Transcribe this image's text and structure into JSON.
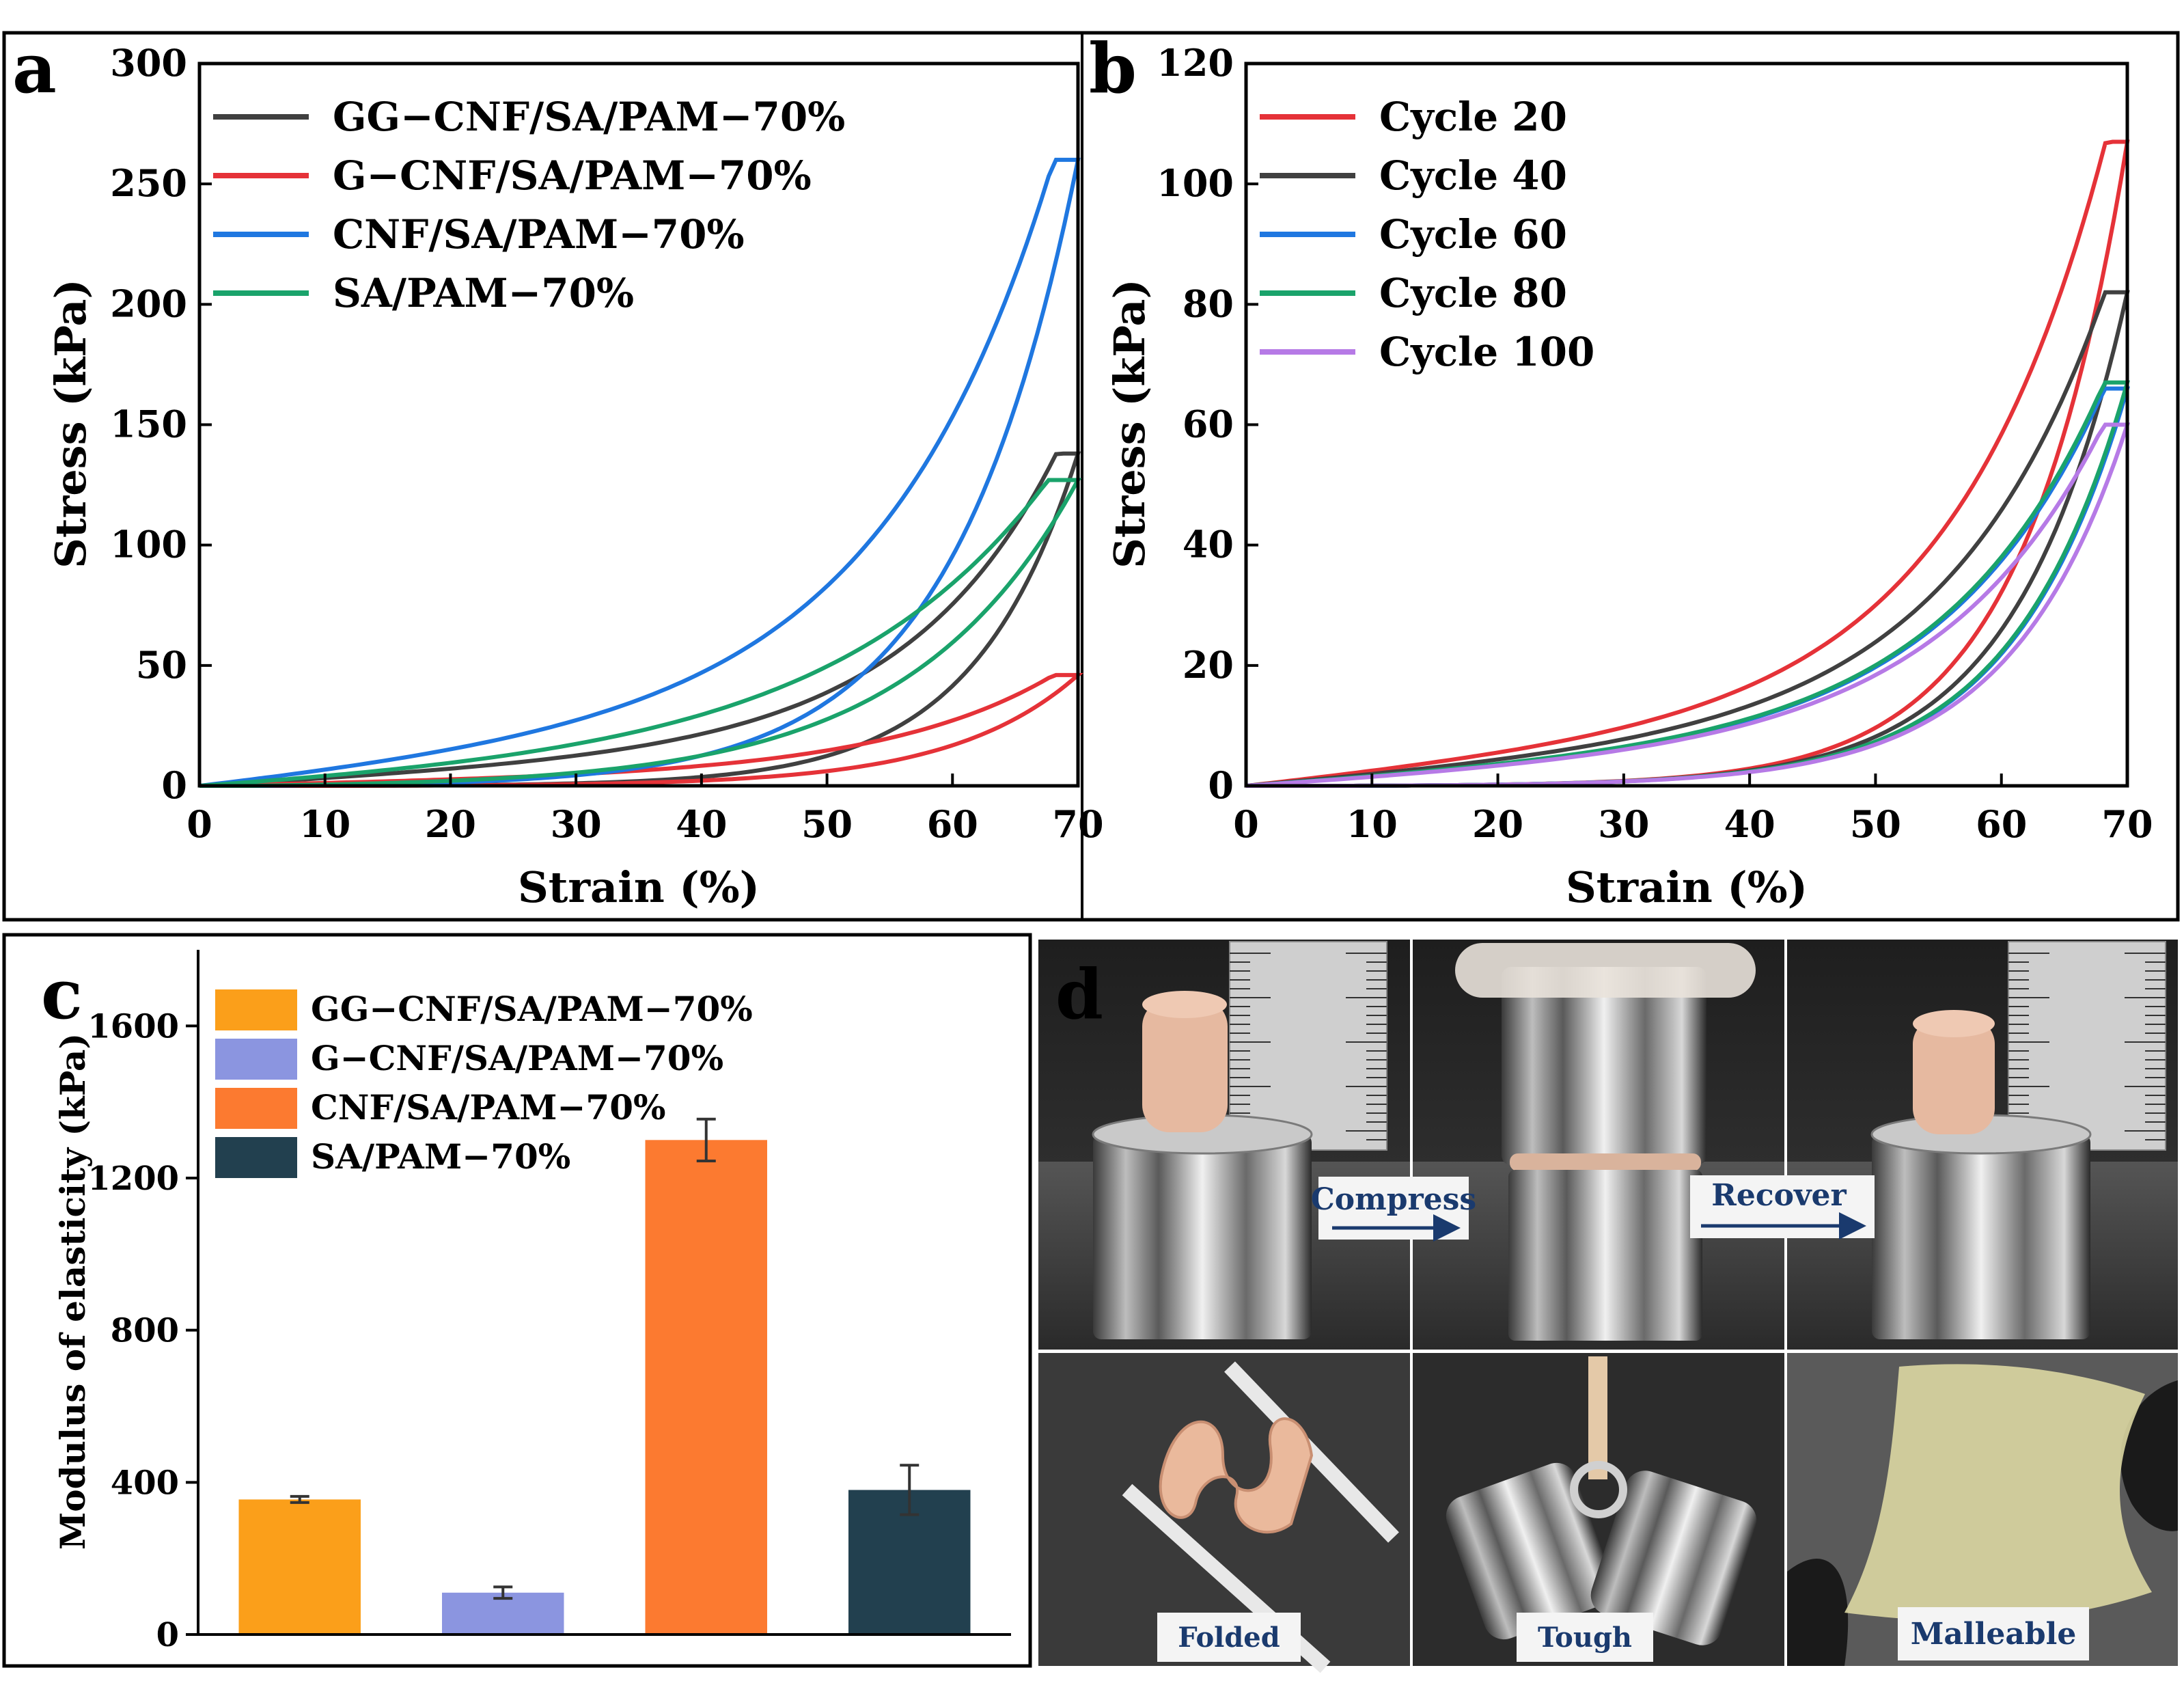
{
  "panel_letters": {
    "a": "a",
    "b": "b",
    "c": "c",
    "d": "d"
  },
  "chart_data": [
    {
      "panel": "a",
      "type": "line",
      "xlabel": "Strain (%)",
      "ylabel": "Stress (kPa)",
      "xlim": [
        0,
        70
      ],
      "ylim": [
        0,
        300
      ],
      "xticks": [
        0,
        10,
        20,
        30,
        40,
        50,
        60,
        70
      ],
      "yticks": [
        0,
        50,
        100,
        150,
        200,
        250,
        300
      ],
      "legend_position": "top-left",
      "series": [
        {
          "name": "GG−CNF/SA/PAM−70%",
          "color": "#404040",
          "peak": 138,
          "load_k": 0.0848,
          "unload_k": 0.12,
          "unload_zero": 10
        },
        {
          "name": "G−CNF/SA/PAM−70%",
          "color": "#e53238",
          "peak": 46,
          "load_k": 0.075,
          "unload_k": 0.1,
          "unload_zero": 12
        },
        {
          "name": "CNF/SA/PAM−70%",
          "color": "#1f77e0",
          "peak": 260,
          "load_k": 0.075,
          "unload_k": 0.1,
          "unload_zero": 5
        },
        {
          "name": "SA/PAM−70%",
          "color": "#1aa36b",
          "peak": 127,
          "load_k": 0.06,
          "unload_k": 0.075,
          "unload_zero": 4
        }
      ]
    },
    {
      "panel": "b",
      "type": "line",
      "xlabel": "Strain (%)",
      "ylabel": "Stress (kPa)",
      "xlim": [
        0,
        70
      ],
      "ylim": [
        0,
        120
      ],
      "xticks": [
        0,
        10,
        20,
        30,
        40,
        50,
        60,
        70
      ],
      "yticks": [
        0,
        20,
        40,
        60,
        80,
        100,
        120
      ],
      "legend_position": "top-left",
      "series": [
        {
          "name": "Cycle 20",
          "color": "#e53238",
          "peak": 107,
          "load_k": 0.085,
          "unload_k": 0.12,
          "unload_zero": 8
        },
        {
          "name": "Cycle 40",
          "color": "#404040",
          "peak": 82,
          "load_k": 0.082,
          "unload_k": 0.115,
          "unload_zero": 8
        },
        {
          "name": "Cycle 60",
          "color": "#1f77e0",
          "peak": 66,
          "load_k": 0.08,
          "unload_k": 0.11,
          "unload_zero": 8
        },
        {
          "name": "Cycle 80",
          "color": "#1aa36b",
          "peak": 67,
          "load_k": 0.08,
          "unload_k": 0.11,
          "unload_zero": 8
        },
        {
          "name": "Cycle 100",
          "color": "#b67ae6",
          "peak": 60,
          "load_k": 0.078,
          "unload_k": 0.108,
          "unload_zero": 8
        }
      ]
    },
    {
      "panel": "c",
      "type": "bar",
      "ylabel": "Modulus of elasticity (kPa)",
      "ylim": [
        0,
        1800
      ],
      "yticks": [
        0,
        400,
        800,
        1200,
        1600
      ],
      "legend_position": "top-left",
      "categories": [
        "GG−CNF/SA/PAM−70%",
        "G−CNF/SA/PAM−70%",
        "CNF/SA/PAM−70%",
        "SA/PAM−70%"
      ],
      "values": [
        355,
        110,
        1300,
        380
      ],
      "errors": [
        8,
        15,
        55,
        65
      ],
      "colors": [
        "#fb9f1a",
        "#8b95e0",
        "#fc7a30",
        "#22404f"
      ]
    }
  ],
  "panel_d": {
    "labels": {
      "compress": "Compress",
      "recover": "Recover",
      "folded": "Folded",
      "tough": "Tough",
      "malleable": "Malleable"
    }
  }
}
